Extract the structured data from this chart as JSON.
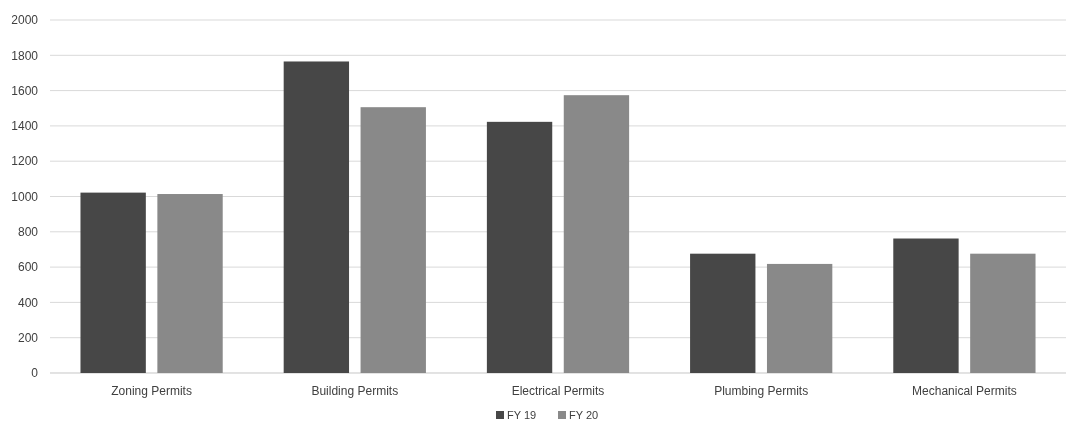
{
  "chart_data": {
    "type": "bar",
    "categories": [
      "Zoning Permits",
      "Building Permits",
      "Electrical Permits",
      "Plumbing Permits",
      "Mechanical Permits"
    ],
    "series": [
      {
        "name": "FY 19",
        "color": "#474747",
        "values": [
          1022,
          1765,
          1423,
          676,
          762
        ]
      },
      {
        "name": "FY 20",
        "color": "#898989",
        "values": [
          1014,
          1506,
          1574,
          618,
          676
        ]
      }
    ],
    "ylim": [
      0,
      2000
    ],
    "yticks": [
      0,
      200,
      400,
      600,
      800,
      1000,
      1200,
      1400,
      1600,
      1800,
      2000
    ],
    "grid": "y",
    "legend": "bottom"
  }
}
